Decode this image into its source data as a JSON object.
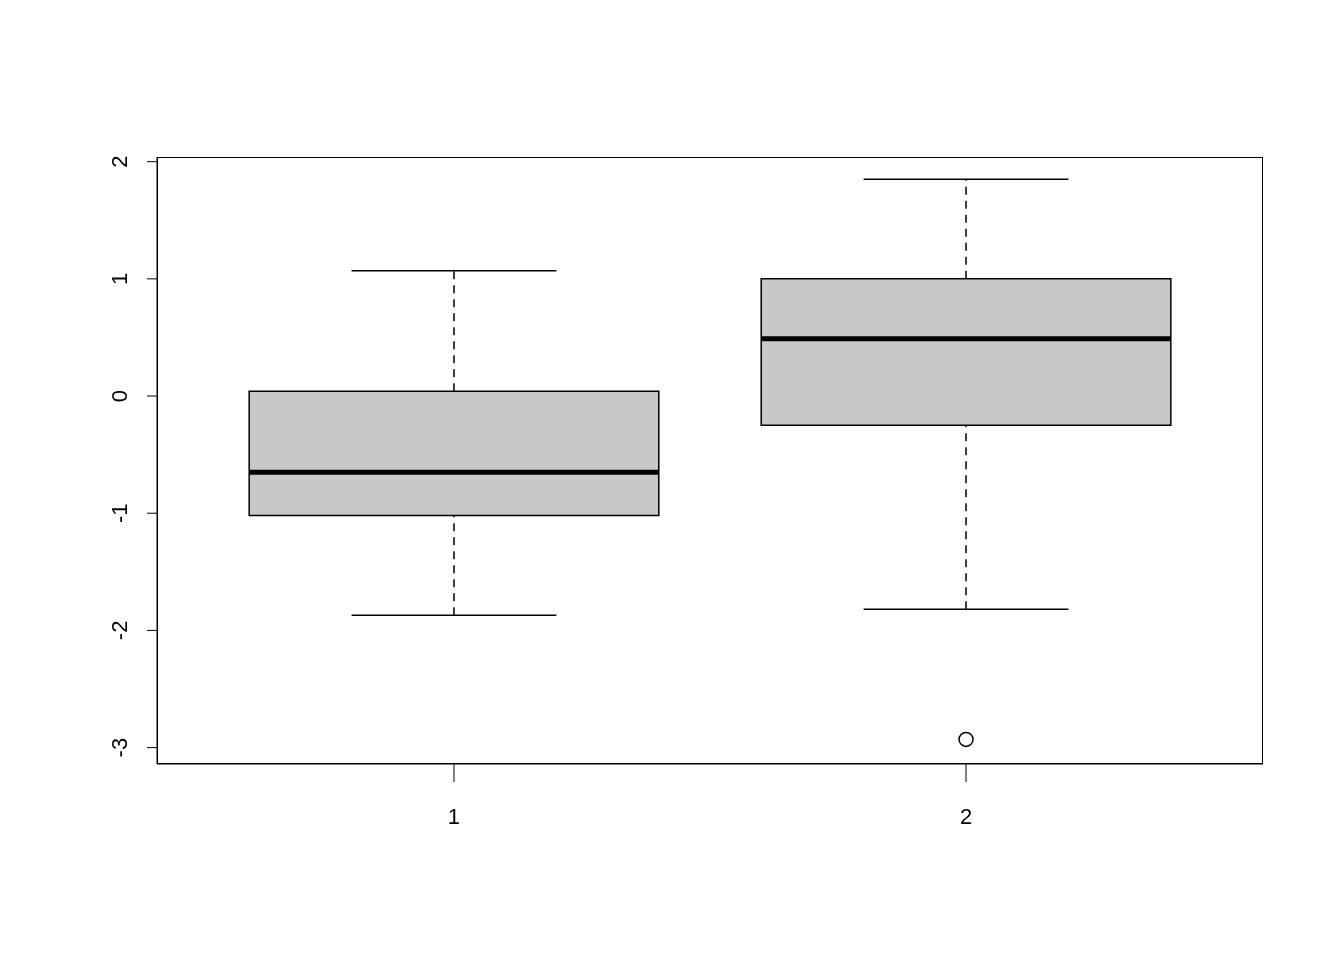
{
  "chart_data": {
    "type": "box",
    "categories": [
      "1",
      "2"
    ],
    "boxes": [
      {
        "low": -1.87,
        "q1": -1.02,
        "median": -0.65,
        "q3": 0.04,
        "high": 1.07
      },
      {
        "low": -1.82,
        "q1": -0.25,
        "median": 0.49,
        "q3": 1.0,
        "high": 1.85,
        "outliers": [
          -2.93
        ]
      }
    ],
    "color": "#c8c8c8",
    "ylim": [
      -3.14,
      2.04
    ],
    "yticks": [
      -3,
      -2,
      -1,
      0,
      1,
      2
    ],
    "grid": false
  }
}
